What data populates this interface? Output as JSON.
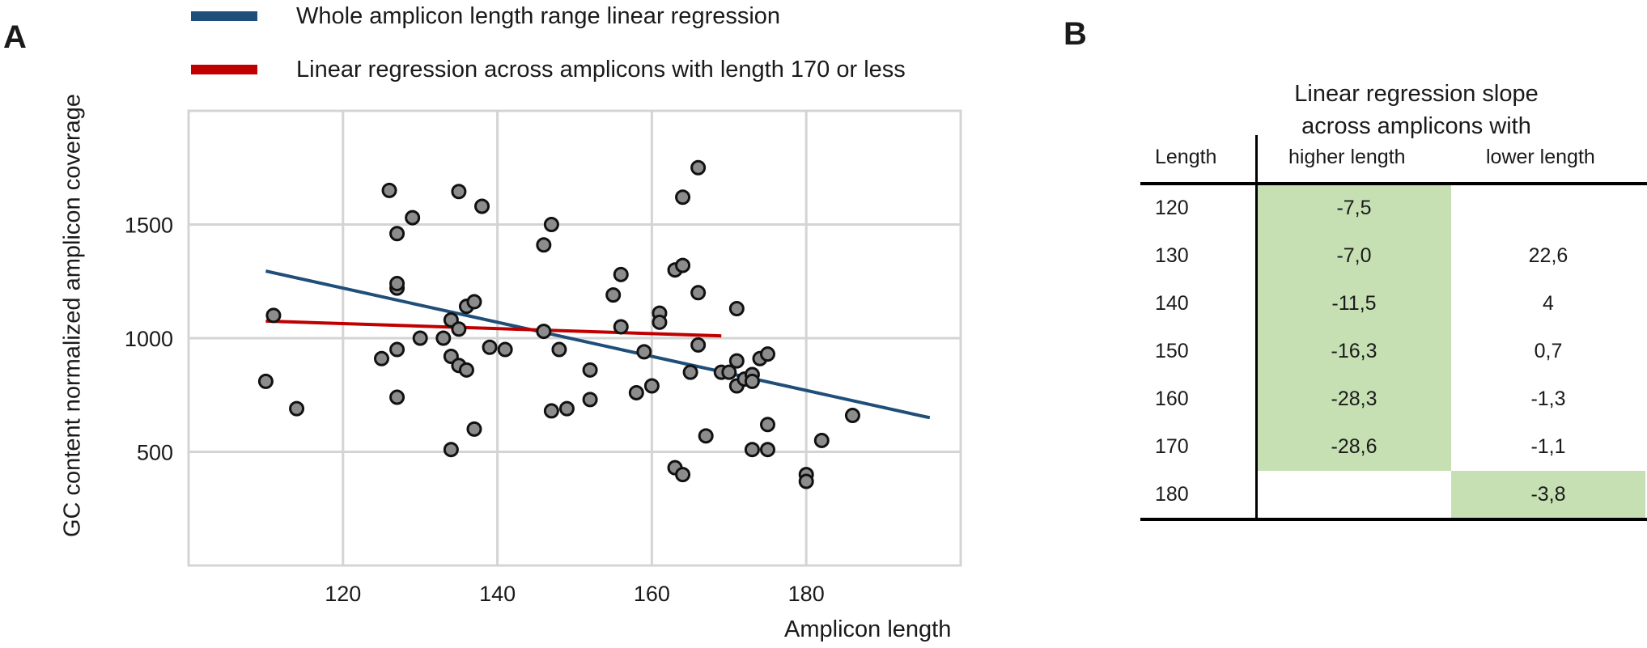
{
  "panel_a_label": "A",
  "panel_b_label": "B",
  "legend": [
    {
      "label": "Whole amplicon length range linear regression",
      "color": "#1f4e79"
    },
    {
      "label": "Linear regression across amplicons with length 170 or less",
      "color": "#c00000"
    }
  ],
  "chart_data": {
    "type": "scatter",
    "title": "",
    "xlabel": "Amplicon length",
    "ylabel": "GC content normalized amplicon coverage",
    "xlim": [
      100,
      200
    ],
    "ylim": [
      0,
      2000
    ],
    "x_ticks": [
      "120",
      "140",
      "160",
      "180"
    ],
    "y_ticks": [
      "500",
      "1000",
      "1500"
    ],
    "grid": true,
    "point_color": "#8c8c8c",
    "points": [
      [
        110,
        810
      ],
      [
        111,
        1100
      ],
      [
        114,
        690
      ],
      [
        125,
        910
      ],
      [
        126,
        1650
      ],
      [
        127,
        1460
      ],
      [
        127,
        1220
      ],
      [
        127,
        1240
      ],
      [
        127,
        950
      ],
      [
        127,
        740
      ],
      [
        129,
        1530
      ],
      [
        130,
        1000
      ],
      [
        133,
        1000
      ],
      [
        134,
        920
      ],
      [
        134,
        1080
      ],
      [
        134,
        510
      ],
      [
        135,
        1645
      ],
      [
        135,
        880
      ],
      [
        135,
        1040
      ],
      [
        136,
        1140
      ],
      [
        136,
        860
      ],
      [
        137,
        1160
      ],
      [
        137,
        600
      ],
      [
        138,
        1580
      ],
      [
        139,
        960
      ],
      [
        141,
        950
      ],
      [
        146,
        1410
      ],
      [
        146,
        1030
      ],
      [
        147,
        1500
      ],
      [
        147,
        680
      ],
      [
        148,
        950
      ],
      [
        149,
        690
      ],
      [
        152,
        860
      ],
      [
        152,
        730
      ],
      [
        155,
        1190
      ],
      [
        156,
        1280
      ],
      [
        156,
        1050
      ],
      [
        158,
        760
      ],
      [
        159,
        940
      ],
      [
        160,
        790
      ],
      [
        161,
        1110
      ],
      [
        161,
        1070
      ],
      [
        163,
        1300
      ],
      [
        163,
        430
      ],
      [
        164,
        1320
      ],
      [
        164,
        1620
      ],
      [
        164,
        400
      ],
      [
        165,
        850
      ],
      [
        166,
        1750
      ],
      [
        166,
        1200
      ],
      [
        166,
        970
      ],
      [
        167,
        570
      ],
      [
        169,
        850
      ],
      [
        170,
        850
      ],
      [
        171,
        1130
      ],
      [
        171,
        900
      ],
      [
        171,
        790
      ],
      [
        172,
        820
      ],
      [
        173,
        840
      ],
      [
        173,
        810
      ],
      [
        173,
        510
      ],
      [
        174,
        910
      ],
      [
        175,
        930
      ],
      [
        175,
        620
      ],
      [
        175,
        510
      ],
      [
        180,
        400
      ],
      [
        180,
        370
      ],
      [
        182,
        550
      ],
      [
        186,
        660
      ]
    ],
    "series": [
      {
        "name": "Whole amplicon length range linear regression",
        "color": "#1f4e79",
        "x": [
          110,
          196
        ],
        "y": [
          1295,
          650
        ]
      },
      {
        "name": "Linear regression across amplicons with length 170 or less",
        "color": "#c00000",
        "x": [
          110,
          169
        ],
        "y": [
          1075,
          1010
        ]
      }
    ]
  },
  "table": {
    "title_line1": "Linear regression slope",
    "title_line2": "across amplicons with",
    "headers": [
      "Length",
      "higher length",
      "lower length"
    ],
    "rows": [
      {
        "length": "120",
        "higher": "-7,5",
        "lower": ""
      },
      {
        "length": "130",
        "higher": "-7,0",
        "lower": "22,6"
      },
      {
        "length": "140",
        "higher": "-11,5",
        "lower": "4"
      },
      {
        "length": "150",
        "higher": "-16,3",
        "lower": "0,7"
      },
      {
        "length": "160",
        "higher": "-28,3",
        "lower": "-1,3"
      },
      {
        "length": "170",
        "higher": "-28,6",
        "lower": "-1,1"
      },
      {
        "length": "180",
        "higher": "",
        "lower": "-3,8"
      }
    ],
    "highlight_color": "#c6e0b4"
  }
}
